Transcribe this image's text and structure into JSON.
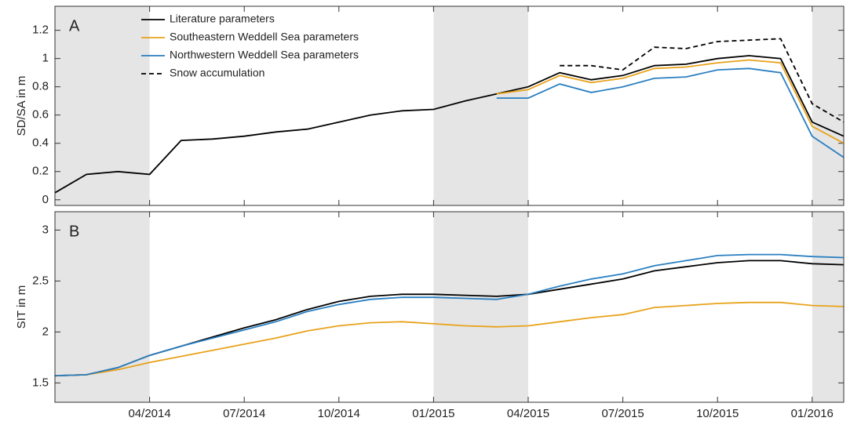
{
  "chart_data": [
    {
      "type": "line",
      "panel_label": "A",
      "ylabel": "SD/SA in m",
      "x": [
        "01/2014",
        "02/2014",
        "03/2014",
        "04/2014",
        "05/2014",
        "06/2014",
        "07/2014",
        "08/2014",
        "09/2014",
        "10/2014",
        "11/2014",
        "12/2014",
        "01/2015",
        "02/2015",
        "03/2015",
        "04/2015",
        "05/2015",
        "06/2015",
        "07/2015",
        "08/2015",
        "09/2015",
        "10/2015",
        "11/2015",
        "12/2015",
        "01/2016",
        "02/2016"
      ],
      "xlim": [
        "01/2014",
        "02/2016"
      ],
      "xticks": [
        "04/2014",
        "07/2014",
        "10/2014",
        "01/2015",
        "04/2015",
        "07/2015",
        "10/2015",
        "01/2016"
      ],
      "ylim": [
        -0.04,
        1.37
      ],
      "yticks": [
        0,
        0.2,
        0.4,
        0.6,
        0.8,
        1,
        1.2
      ],
      "shaded": [
        [
          "01/2014",
          "04/2014"
        ],
        [
          "01/2015",
          "04/2015"
        ],
        [
          "01/2016",
          "02/2016"
        ]
      ],
      "legend": "upper left",
      "series": [
        {
          "name": "Literature parameters",
          "color": "#000000",
          "dashed": false,
          "values": [
            0.05,
            0.18,
            0.2,
            0.18,
            0.42,
            0.43,
            0.45,
            0.48,
            0.5,
            0.55,
            0.6,
            0.63,
            0.64,
            0.7,
            0.75,
            0.8,
            0.9,
            0.85,
            0.88,
            0.95,
            0.96,
            1.0,
            1.02,
            1.0,
            0.55,
            0.45
          ]
        },
        {
          "name": "Southeastern Weddell Sea parameters",
          "color": "#e8a21b",
          "dashed": false,
          "values": [
            null,
            null,
            null,
            null,
            null,
            null,
            null,
            null,
            null,
            null,
            null,
            null,
            null,
            null,
            0.75,
            0.78,
            0.88,
            0.83,
            0.86,
            0.93,
            0.94,
            0.97,
            0.99,
            0.97,
            0.52,
            0.4
          ]
        },
        {
          "name": "Northwestern Weddell Sea parameters",
          "color": "#2a7fc1",
          "dashed": false,
          "values": [
            null,
            null,
            null,
            null,
            null,
            null,
            null,
            null,
            null,
            null,
            null,
            null,
            null,
            null,
            0.72,
            0.72,
            0.82,
            0.76,
            0.8,
            0.86,
            0.87,
            0.92,
            0.93,
            0.9,
            0.45,
            0.3
          ]
        },
        {
          "name": "Snow accumulation",
          "color": "#000000",
          "dashed": true,
          "values": [
            null,
            null,
            null,
            null,
            null,
            null,
            null,
            null,
            null,
            null,
            null,
            null,
            null,
            null,
            null,
            null,
            0.95,
            0.95,
            0.92,
            1.08,
            1.07,
            1.12,
            1.13,
            1.14,
            0.68,
            0.55
          ]
        }
      ]
    },
    {
      "type": "line",
      "panel_label": "B",
      "ylabel": "SIT in m",
      "x": [
        "01/2014",
        "02/2014",
        "03/2014",
        "04/2014",
        "05/2014",
        "06/2014",
        "07/2014",
        "08/2014",
        "09/2014",
        "10/2014",
        "11/2014",
        "12/2014",
        "01/2015",
        "02/2015",
        "03/2015",
        "04/2015",
        "05/2015",
        "06/2015",
        "07/2015",
        "08/2015",
        "09/2015",
        "10/2015",
        "11/2015",
        "12/2015",
        "01/2016",
        "02/2016"
      ],
      "xlim": [
        "01/2014",
        "02/2016"
      ],
      "xticks": [
        "04/2014",
        "07/2014",
        "10/2014",
        "01/2015",
        "04/2015",
        "07/2015",
        "10/2015",
        "01/2016"
      ],
      "ylim": [
        1.31,
        3.18
      ],
      "yticks": [
        1.5,
        2,
        2.5,
        3
      ],
      "shaded": [
        [
          "01/2014",
          "04/2014"
        ],
        [
          "01/2015",
          "04/2015"
        ],
        [
          "01/2016",
          "02/2016"
        ]
      ],
      "series": [
        {
          "color": "#000000",
          "dashed": false,
          "values": [
            1.57,
            1.58,
            1.65,
            1.77,
            1.86,
            1.95,
            2.04,
            2.12,
            2.22,
            2.3,
            2.35,
            2.37,
            2.37,
            2.36,
            2.35,
            2.37,
            2.42,
            2.47,
            2.52,
            2.6,
            2.64,
            2.68,
            2.7,
            2.7,
            2.67,
            2.66
          ]
        },
        {
          "color": "#e8a21b",
          "dashed": false,
          "values": [
            1.57,
            1.58,
            1.63,
            1.7,
            1.76,
            1.82,
            1.88,
            1.94,
            2.01,
            2.06,
            2.09,
            2.1,
            2.08,
            2.06,
            2.05,
            2.06,
            2.1,
            2.14,
            2.17,
            2.24,
            2.26,
            2.28,
            2.29,
            2.29,
            2.26,
            2.25
          ]
        },
        {
          "color": "#2a7fc1",
          "dashed": false,
          "values": [
            1.57,
            1.58,
            1.65,
            1.77,
            1.86,
            1.94,
            2.02,
            2.1,
            2.2,
            2.27,
            2.32,
            2.34,
            2.34,
            2.33,
            2.32,
            2.37,
            2.45,
            2.52,
            2.57,
            2.65,
            2.7,
            2.75,
            2.76,
            2.76,
            2.74,
            2.73
          ]
        }
      ]
    }
  ]
}
